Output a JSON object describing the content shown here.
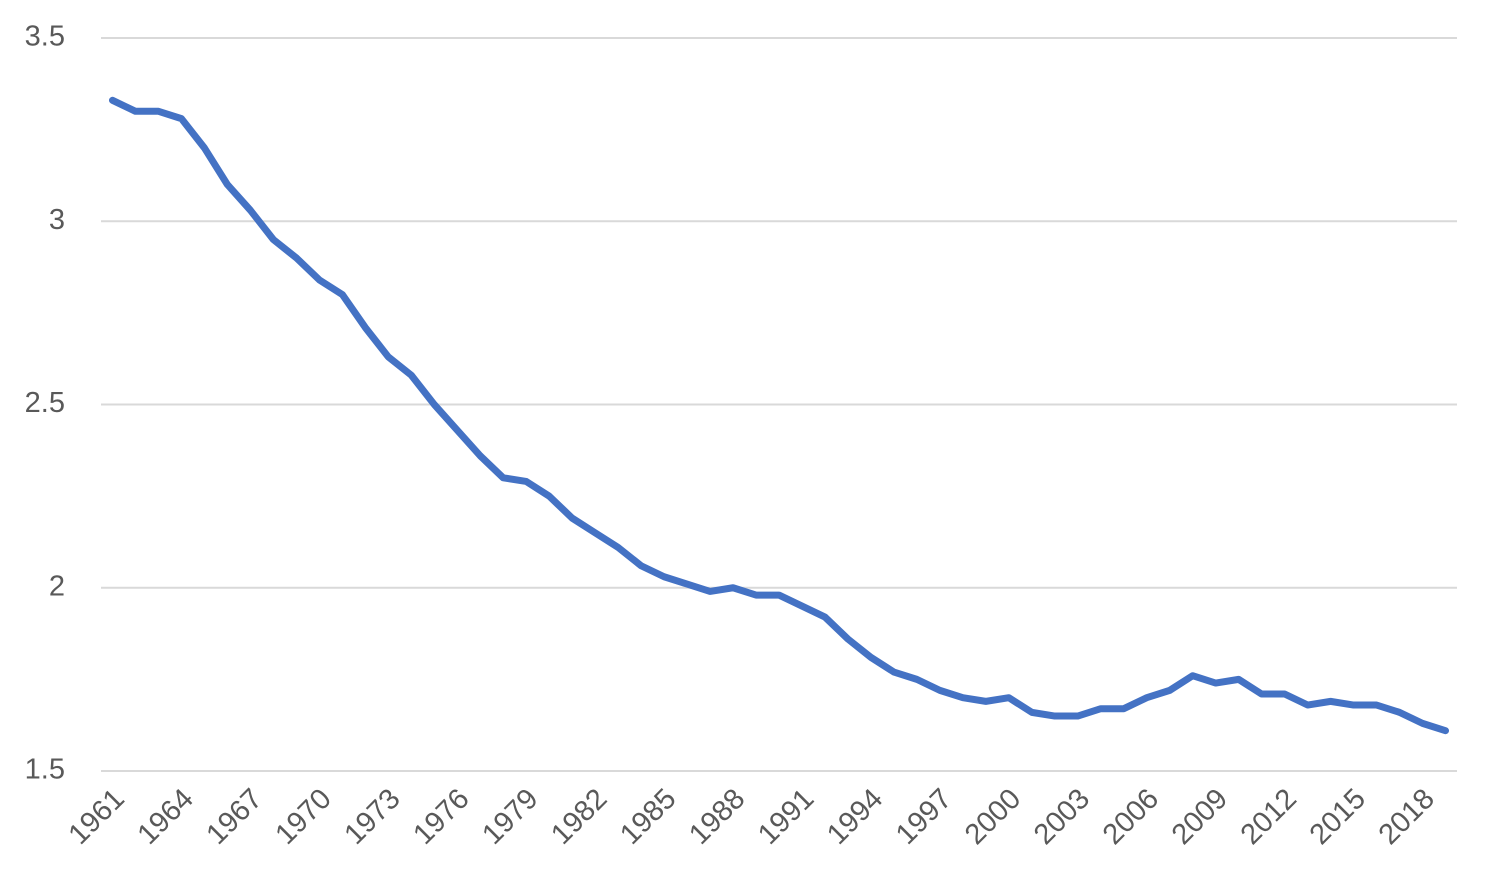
{
  "chart_data": {
    "type": "line",
    "categories": [
      "1961",
      null,
      null,
      "1964",
      null,
      null,
      "1967",
      null,
      null,
      "1970",
      null,
      null,
      "1973",
      null,
      null,
      "1976",
      null,
      null,
      "1979",
      null,
      null,
      "1982",
      null,
      null,
      "1985",
      null,
      null,
      "1988",
      null,
      null,
      "1991",
      null,
      null,
      "1994",
      null,
      null,
      "1997",
      null,
      null,
      "2000",
      null,
      null,
      "2003",
      null,
      null,
      "2006",
      null,
      null,
      "2009",
      null,
      null,
      "2012",
      null,
      null,
      "2015",
      null,
      null,
      "2018",
      null
    ],
    "values": [
      3.33,
      3.3,
      3.3,
      3.28,
      3.2,
      3.1,
      3.03,
      2.95,
      2.9,
      2.84,
      2.8,
      2.71,
      2.63,
      2.58,
      2.5,
      2.43,
      2.36,
      2.3,
      2.29,
      2.25,
      2.19,
      2.15,
      2.11,
      2.06,
      2.03,
      2.01,
      1.99,
      2.0,
      1.98,
      1.98,
      1.95,
      1.92,
      1.86,
      1.81,
      1.77,
      1.75,
      1.72,
      1.7,
      1.69,
      1.7,
      1.66,
      1.65,
      1.65,
      1.67,
      1.67,
      1.7,
      1.72,
      1.76,
      1.74,
      1.75,
      1.71,
      1.71,
      1.68,
      1.69,
      1.68,
      1.68,
      1.66,
      1.63,
      1.61
    ],
    "color": "#4472c4",
    "ylim": [
      1.5,
      3.5
    ],
    "yticks": [
      1.5,
      2,
      2.5,
      3,
      3.5
    ],
    "grid": true
  }
}
